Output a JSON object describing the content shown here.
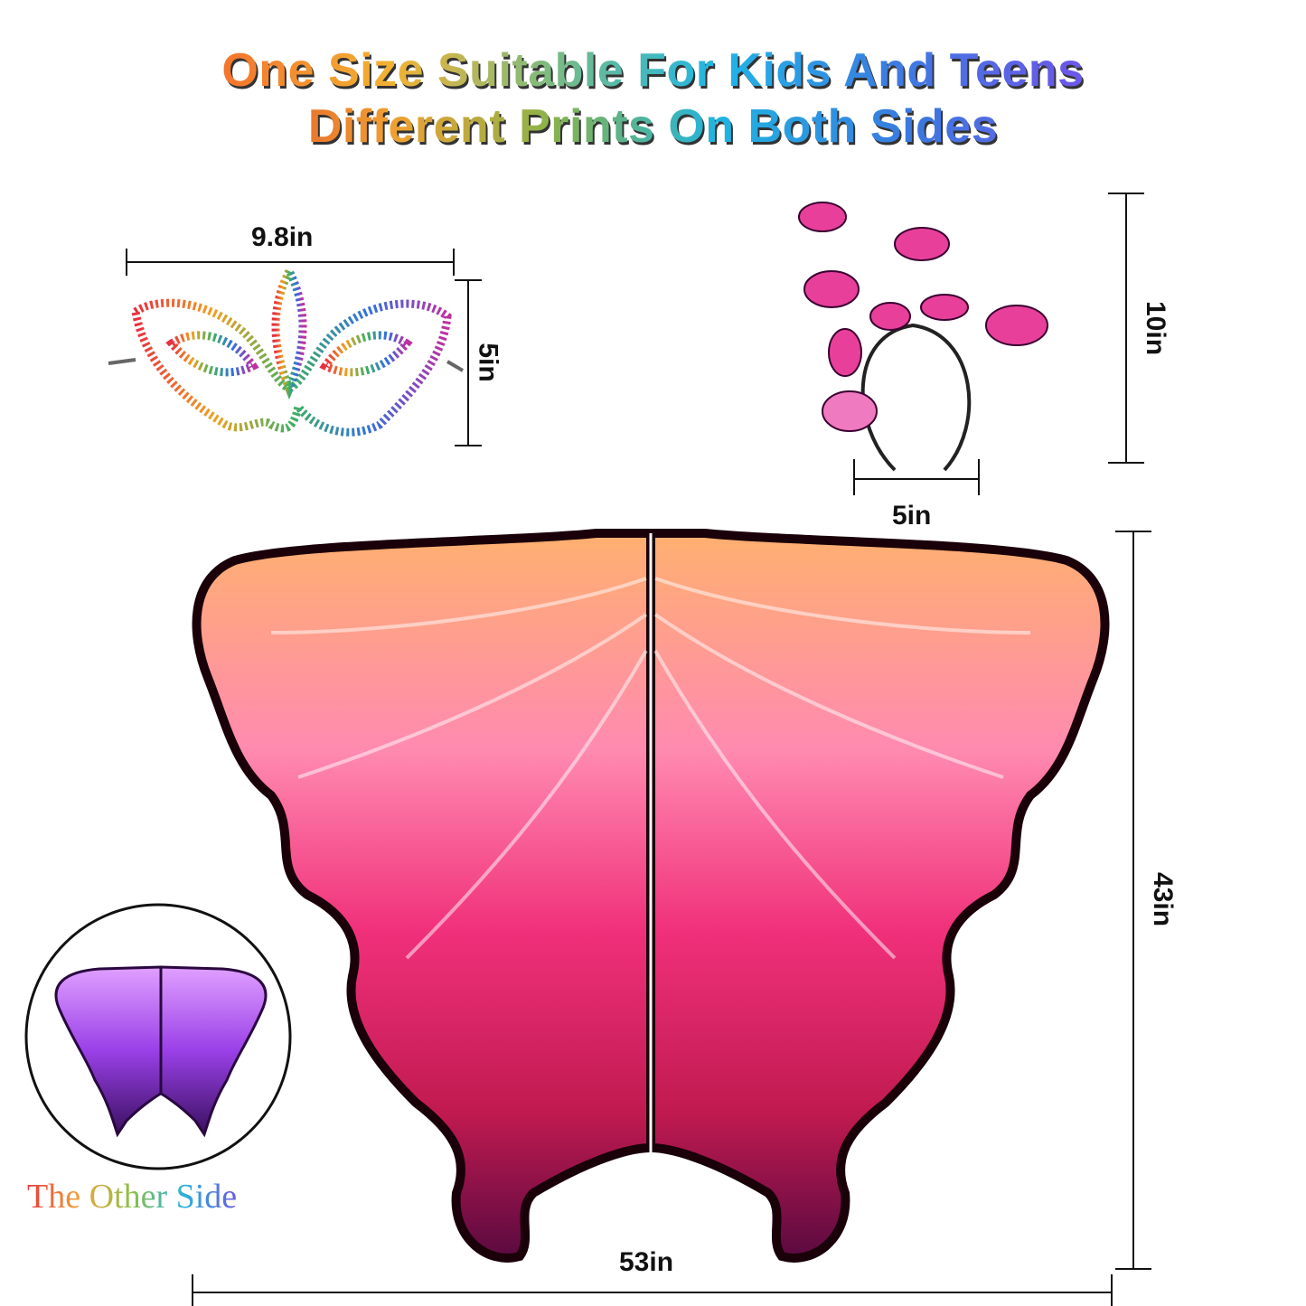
{
  "headline": {
    "line1": "One Size Suitable For Kids And Teens",
    "line2": "Different Prints On Both Sides"
  },
  "mask": {
    "width_label": "9.8in",
    "height_label": "5in"
  },
  "headband": {
    "height_label": "10in",
    "width_label": "5in"
  },
  "wings": {
    "height_label": "43in",
    "width_label": "53in"
  },
  "other_side_label": "The Other Side",
  "colors": {
    "wing_pink": "#f0308a",
    "wing_orange": "#f08a30",
    "wing_dark": "#3a0010",
    "other_side_purple": "#8a3ae0"
  }
}
